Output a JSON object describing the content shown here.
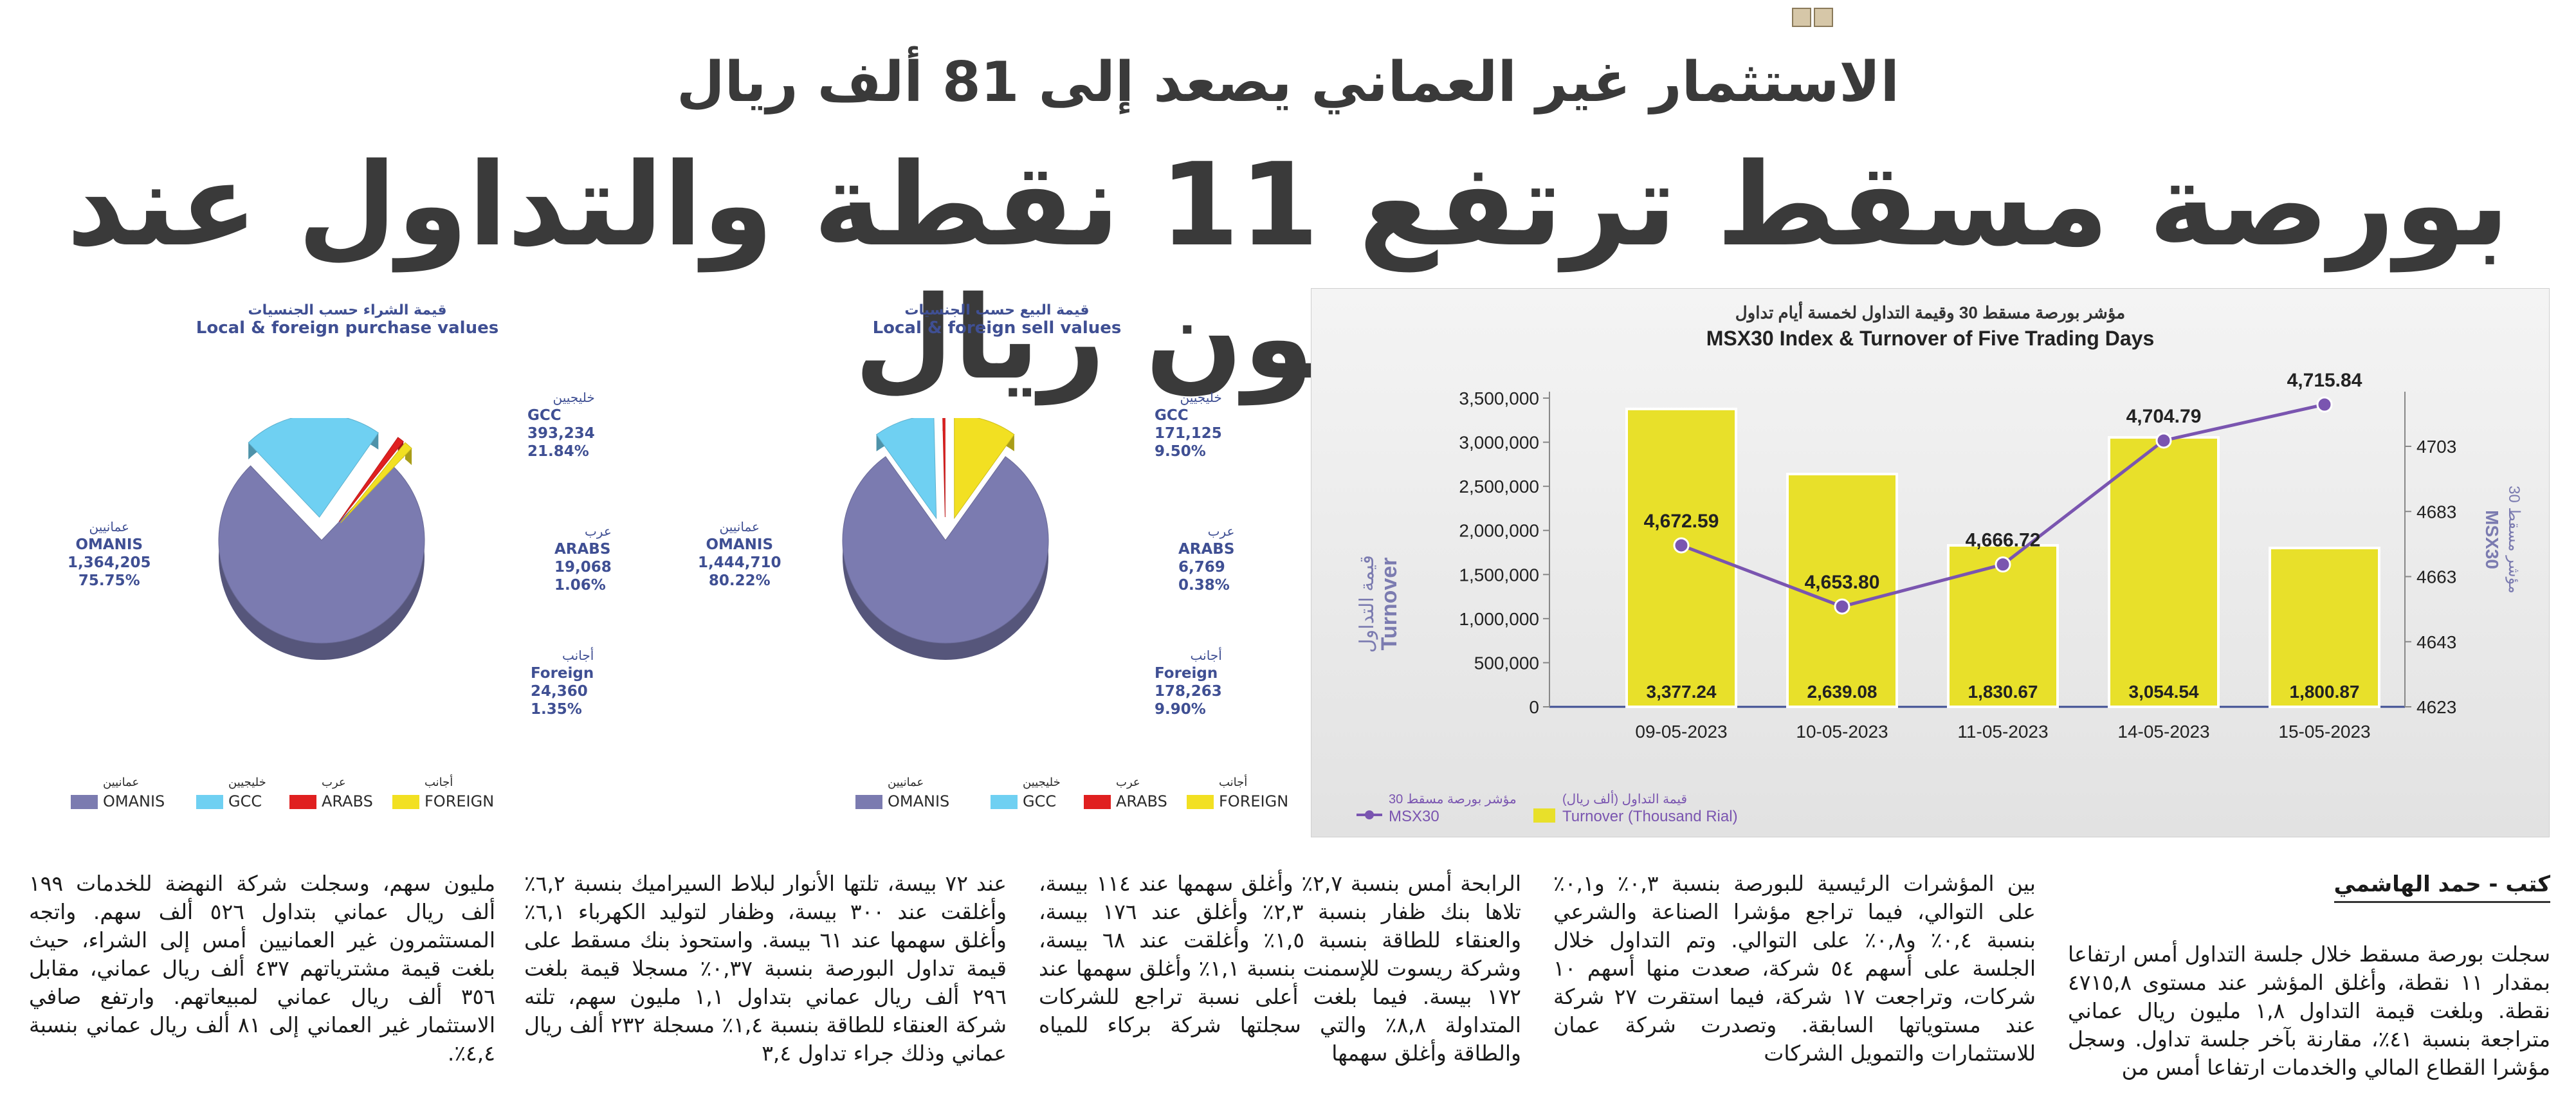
{
  "kicker": "الاستثمار غير العماني يصعد إلى 81 ألف ريال",
  "headline": "بورصة مسقط ترتفع 11 نقطة والتداول عند 1.8 مليون ريال",
  "colors": {
    "omanis": "#7b7bb0",
    "gcc": "#6fd0f2",
    "arabs": "#e02020",
    "foreign": "#f2e022",
    "accent": "#3f4f93",
    "bar": "#e8e02a",
    "line": "#7a55b0"
  },
  "purchase_pie": {
    "title_ar": "قيمة الشراء حسب الجنسيات",
    "title_en": "Local & foreign purchase values",
    "omanis": {
      "ar": "عمانيين",
      "en": "OMANIS",
      "value": "1,364,205",
      "pct": "75.75%"
    },
    "gcc": {
      "ar": "خليجيين",
      "en": "GCC",
      "value": "393,234",
      "pct": "21.84%"
    },
    "arabs": {
      "ar": "عرب",
      "en": "ARABS",
      "value": "19,068",
      "pct": "1.06%"
    },
    "foreign": {
      "ar": "أجانب",
      "en": "Foreign",
      "value": "24,360",
      "pct": "1.35%"
    }
  },
  "sell_pie": {
    "title_ar": "قيمة البيع حسب الجنسيات",
    "title_en": "Local & foreign sell values",
    "omanis": {
      "ar": "عمانيين",
      "en": "OMANIS",
      "value": "1,444,710",
      "pct": "80.22%"
    },
    "gcc": {
      "ar": "خليجيين",
      "en": "GCC",
      "value": "171,125",
      "pct": "9.50%"
    },
    "arabs": {
      "ar": "عرب",
      "en": "ARABS",
      "value": "6,769",
      "pct": "0.38%"
    },
    "foreign": {
      "ar": "أجانب",
      "en": "Foreign",
      "value": "178,263",
      "pct": "9.90%"
    }
  },
  "pie_legend": [
    {
      "ar": "عمانيين",
      "en": "OMANIS"
    },
    {
      "ar": "خليجيين",
      "en": "GCC"
    },
    {
      "ar": "عرب",
      "en": "ARABS"
    },
    {
      "ar": "أجانب",
      "en": "FOREIGN"
    }
  ],
  "chart_data": [
    {
      "type": "pie",
      "title": "Local & foreign purchase values",
      "categories": [
        "OMANIS",
        "GCC",
        "ARABS",
        "Foreign"
      ],
      "values": [
        1364205,
        393234,
        19068,
        24360
      ],
      "percentages": [
        75.75,
        21.84,
        1.06,
        1.35
      ]
    },
    {
      "type": "pie",
      "title": "Local & foreign sell values",
      "categories": [
        "OMANIS",
        "GCC",
        "ARABS",
        "Foreign"
      ],
      "values": [
        1444710,
        171125,
        6769,
        178263
      ],
      "percentages": [
        80.22,
        9.5,
        0.38,
        9.9
      ]
    },
    {
      "type": "bar",
      "title_ar": "مؤشر بورصة مسقط 30 وقيمة التداول لخمسة أيام تداول",
      "title": "MSX30 Index & Turnover of Five Trading Days",
      "categories": [
        "09-05-2023",
        "10-05-2023",
        "11-05-2023",
        "14-05-2023",
        "15-05-2023"
      ],
      "series": [
        {
          "name": "Turnover (Thousand Rial)",
          "type": "bar",
          "values": [
            3377.24,
            2639.08,
            1830.67,
            3054.54,
            1800.87
          ],
          "labels": [
            "3,377.24",
            "2,639.08",
            "1,830.67",
            "3,054.54",
            "1,800.87"
          ]
        },
        {
          "name": "MSX30",
          "type": "line",
          "values": [
            4672.59,
            4653.8,
            4666.72,
            4704.79,
            4715.84
          ],
          "labels": [
            "4,672.59",
            "4,653.80",
            "4,666.72",
            "4,704.79",
            "4,715.84"
          ]
        }
      ],
      "ylabel_left": "Turnover",
      "ylabel_left_ar": "قيمة التداول",
      "ylabel_right": "MSX30",
      "ylabel_right_ar": "مؤشر مسقط 30",
      "yticks_left": [
        "3,500,000",
        "3,000,000",
        "2,500,000",
        "2,000,000",
        "1,500,000",
        "1,000,000",
        "500,000",
        "0"
      ],
      "ylim_left": [
        0,
        3500000
      ],
      "yticks_right": [
        "4703",
        "4683",
        "4663",
        "4643",
        "4623"
      ],
      "ylim_right": [
        4623,
        4723
      ],
      "legend": [
        {
          "ar": "قيمة التداول (ألف ريال)",
          "en": "Turnover (Thousand Rial)"
        },
        {
          "ar": "مؤشر بورصة مسقط 30",
          "en": "MSX30"
        }
      ]
    }
  ],
  "byline": "كتب - حمد الهاشمي",
  "columns": [
    "سجلت بورصة مسقط خلال جلسة التداول أمس ارتفاعا بمقدار ١١ نقطة، وأغلق المؤشر عند مستوى ٤٧١٥,٨ نقطة. وبلغت قيمة التداول ١,٨ مليون ريال عماني متراجعة بنسبة ٤١٪، مقارنة بآخر جلسة تداول. وسجل مؤشرا القطاع المالي والخدمات ارتفاعا أمس من",
    "بين المؤشرات الرئيسية للبورصة بنسبة ٠,٣٪ و٠,١٪ على التوالي، فيما تراجع مؤشرا الصناعة والشرعي بنسبة ٠,٤٪ و٠,٨٪ على التوالي. وتم التداول خلال الجلسة على أسهم ٥٤ شركة، صعدت منها أسهم ١٠ شركات، وتراجعت ١٧ شركة، فيما استقرت ٢٧ شركة عند مستوياتها السابقة. وتصدرت شركة عمان للاستثمارات والتمويل الشركات",
    "الرابحة أمس بنسبة ٢,٧٪ وأغلق سهمها عند ١١٤ بيسة، تلاها بنك ظفار بنسبة ٢,٣٪ وأغلق عند ١٧٦ بيسة، والعنقاء للطاقة بنسبة ١,٥٪ وأغلقت عند ٦٨ بيسة، وشركة ريسوت للإسمنت بنسبة ١,١٪ وأغلق سهمها عند ١٧٢ بيسة. فيما بلغت أعلى نسبة تراجع للشركات المتداولة ٨,٨٪ والتي سجلتها شركة بركاء للمياه والطاقة وأغلق سهمها",
    "عند ٧٢ بيسة، تلتها الأنوار لبلاط السيراميك بنسبة ٦,٢٪ وأغلقت عند ٣٠٠ بيسة، وظفار لتوليد الكهرباء ٦,١٪ وأغلق سهمها عند ٦١ بيسة. واستحوذ بنك مسقط على قيمة تداول البورصة بنسبة ٠,٣٧٪ مسجلا قيمة بلغت ٢٩٦ ألف ريال عماني بتداول ١,١ مليون سهم، تلته شركة العنقاء للطاقة بنسبة ١,٤٪ مسجلة ٢٣٢ ألف ريال عماني وذلك جراء تداول ٣,٤",
    "مليون سهم، وسجلت شركة النهضة للخدمات ١٩٩ ألف ريال عماني بتداول ٥٢٦ ألف سهم. واتجه المستثمرون غير العمانيين أمس إلى الشراء، حيث بلغت قيمة مشترياتهم ٤٣٧ ألف ريال عماني، مقابل ٣٥٦ ألف ريال عماني لمبيعاتهم. وارتفع صافي الاستثمار غير العماني إلى ٨١ ألف ريال عماني بنسبة ٤,٤٪."
  ]
}
